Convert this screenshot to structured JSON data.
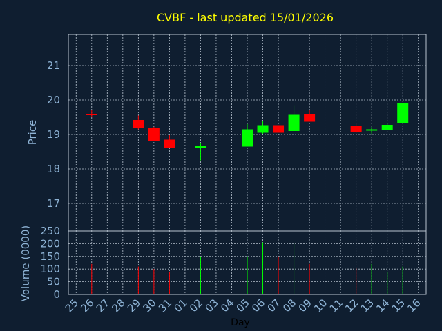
{
  "chart_data": {
    "title": "CVBF - last updated 15/01/2026",
    "colors": {
      "background": "#0f1e30",
      "up": "#00ff00",
      "down": "#ff0000",
      "neutral": "#ff0000",
      "grid": "#b8c4d0",
      "axis_text": "#8fb4d6",
      "title": "#ffff00"
    },
    "price_panel": {
      "type": "candlestick",
      "ylabel": "Price",
      "ylim": [
        16.2,
        21.9
      ],
      "yticks": [
        17,
        18,
        19,
        20,
        21
      ],
      "grid": true
    },
    "volume_panel": {
      "type": "bar",
      "ylabel": "Volume (0000)",
      "ylim": [
        0,
        250
      ],
      "yticks": [
        0,
        50,
        100,
        150,
        200,
        250
      ],
      "grid": true
    },
    "x_axis": {
      "label": "Day",
      "ticks": [
        "25",
        "26",
        "27",
        "28",
        "29",
        "30",
        "31",
        "01",
        "02",
        "03",
        "04",
        "05",
        "06",
        "07",
        "08",
        "09",
        "10",
        "11",
        "12",
        "13",
        "14",
        "15",
        "16"
      ]
    },
    "candles": [
      {
        "day": "26",
        "open": 19.6,
        "high": 19.72,
        "low": 19.5,
        "close": 19.6,
        "volume": 120
      },
      {
        "day": "29",
        "open": 19.42,
        "high": 19.55,
        "low": 19.15,
        "close": 19.2,
        "volume": 110
      },
      {
        "day": "30",
        "open": 19.2,
        "high": 19.22,
        "low": 18.8,
        "close": 18.8,
        "volume": 100
      },
      {
        "day": "31",
        "open": 18.85,
        "high": 18.98,
        "low": 18.6,
        "close": 18.6,
        "volume": 90
      },
      {
        "day": "02",
        "open": 18.62,
        "high": 18.75,
        "low": 18.25,
        "close": 18.67,
        "volume": 150
      },
      {
        "day": "05",
        "open": 18.65,
        "high": 19.3,
        "low": 18.65,
        "close": 19.15,
        "volume": 150
      },
      {
        "day": "06",
        "open": 19.05,
        "high": 19.4,
        "low": 19.0,
        "close": 19.27,
        "volume": 205
      },
      {
        "day": "07",
        "open": 19.27,
        "high": 19.27,
        "low": 19.05,
        "close": 19.05,
        "volume": 150
      },
      {
        "day": "08",
        "open": 19.1,
        "high": 19.85,
        "low": 19.1,
        "close": 19.57,
        "volume": 200
      },
      {
        "day": "09",
        "open": 19.6,
        "high": 19.7,
        "low": 19.37,
        "close": 19.37,
        "volume": 120
      },
      {
        "day": "12",
        "open": 19.25,
        "high": 19.3,
        "low": 19.05,
        "close": 19.07,
        "volume": 105
      },
      {
        "day": "13",
        "open": 19.12,
        "high": 19.22,
        "low": 19.02,
        "close": 19.15,
        "volume": 120
      },
      {
        "day": "14",
        "open": 19.12,
        "high": 19.33,
        "low": 19.12,
        "close": 19.28,
        "volume": 90
      },
      {
        "day": "15",
        "open": 19.32,
        "high": 19.92,
        "low": 19.32,
        "close": 19.9,
        "volume": 110
      }
    ]
  }
}
